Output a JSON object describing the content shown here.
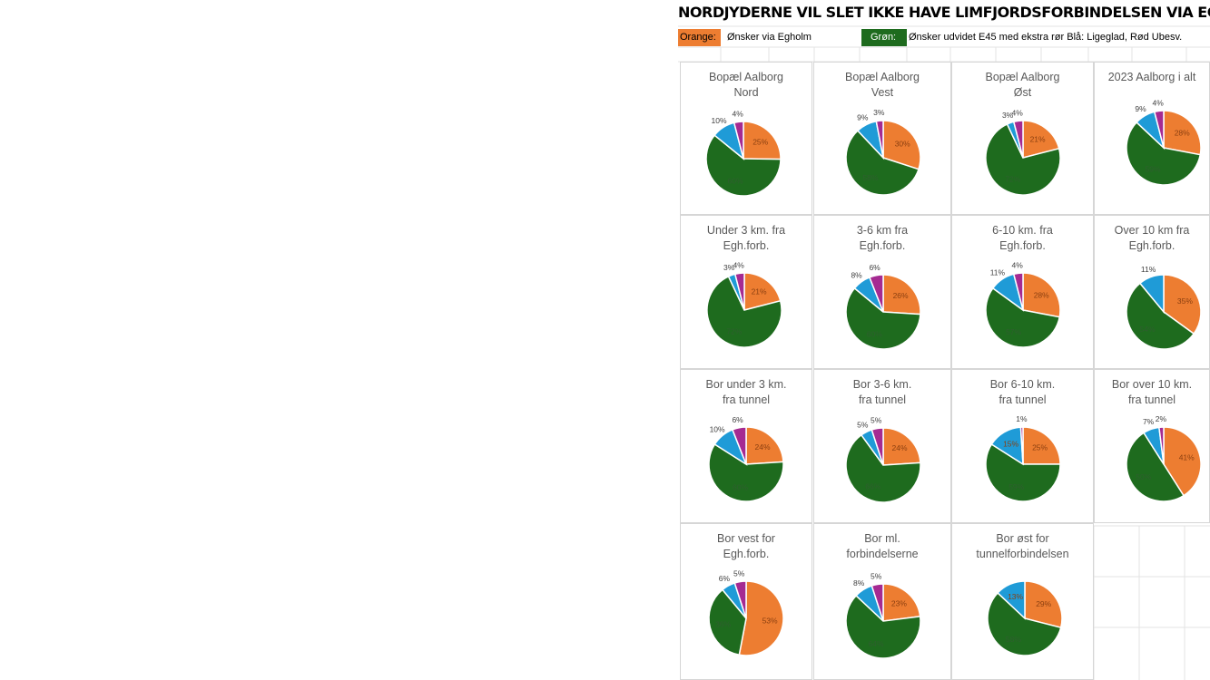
{
  "title": "NORDJYDERNE VIL SLET IKKE HAVE LIMFJORDSFORBINDELSEN VIA EGHOLM",
  "legend": {
    "orange_label": "Orange:",
    "orange_text": "Ønsker via Egholm",
    "green_label": "Grøn:",
    "green_text": "Ønsker udvidet E45 med ekstra rør  Blå: Ligeglad, Rød Ubesv."
  },
  "colors": {
    "orange": "#ed7d31",
    "green": "#1e6b1e",
    "blue": "#1f9bd7",
    "purple": "#a52a92"
  },
  "chart_data": [
    {
      "type": "pie",
      "title": "Bopæl Aalborg\nNord",
      "slices": [
        {
          "category": "orange",
          "value": 25,
          "label": "25%"
        },
        {
          "category": "green",
          "value": 60,
          "label": "60%"
        },
        {
          "category": "blue",
          "value": 10,
          "label": "10%"
        },
        {
          "category": "purple",
          "value": 4,
          "label": "4%"
        }
      ]
    },
    {
      "type": "pie",
      "title": "Bopæl Aalborg\nVest",
      "slices": [
        {
          "category": "orange",
          "value": 30,
          "label": "30%"
        },
        {
          "category": "green",
          "value": 58,
          "label": "58%"
        },
        {
          "category": "blue",
          "value": 9,
          "label": "9%"
        },
        {
          "category": "purple",
          "value": 3,
          "label": "3%"
        }
      ]
    },
    {
      "type": "pie",
      "title": "Bopæl Aalborg\nØst",
      "slices": [
        {
          "category": "orange",
          "value": 21,
          "label": "21%"
        },
        {
          "category": "green",
          "value": 72,
          "label": "72%"
        },
        {
          "category": "blue",
          "value": 3,
          "label": "3%"
        },
        {
          "category": "purple",
          "value": 4,
          "label": "4%"
        }
      ]
    },
    {
      "type": "pie",
      "title": "2023 Aalborg i alt",
      "slices": [
        {
          "category": "orange",
          "value": 28,
          "label": "28%"
        },
        {
          "category": "green",
          "value": 59,
          "label": "59%"
        },
        {
          "category": "blue",
          "value": 9,
          "label": "9%"
        },
        {
          "category": "purple",
          "value": 4,
          "label": "4%"
        }
      ]
    },
    {
      "type": "pie",
      "title": "Under 3 km. fra\nEgh.forb.",
      "slices": [
        {
          "category": "orange",
          "value": 21,
          "label": "21%"
        },
        {
          "category": "green",
          "value": 72,
          "label": "72%"
        },
        {
          "category": "blue",
          "value": 3,
          "label": "3%"
        },
        {
          "category": "purple",
          "value": 4,
          "label": "4%"
        }
      ]
    },
    {
      "type": "pie",
      "title": "3-6 km  fra\nEgh.forb.",
      "slices": [
        {
          "category": "orange",
          "value": 26,
          "label": "26%"
        },
        {
          "category": "green",
          "value": 60,
          "label": "60%"
        },
        {
          "category": "blue",
          "value": 8,
          "label": "8%"
        },
        {
          "category": "purple",
          "value": 6,
          "label": "6%"
        }
      ]
    },
    {
      "type": "pie",
      "title": "6-10 km. fra\nEgh.forb.",
      "slices": [
        {
          "category": "orange",
          "value": 28,
          "label": "28%"
        },
        {
          "category": "green",
          "value": 57,
          "label": "57%"
        },
        {
          "category": "blue",
          "value": 11,
          "label": "11%"
        },
        {
          "category": "purple",
          "value": 4,
          "label": "4%"
        }
      ]
    },
    {
      "type": "pie",
      "title": "Over 10 km  fra\nEgh.forb.",
      "slices": [
        {
          "category": "orange",
          "value": 35,
          "label": "35%"
        },
        {
          "category": "green",
          "value": 54,
          "label": "54%"
        },
        {
          "category": "blue",
          "value": 11,
          "label": "11%"
        }
      ]
    },
    {
      "type": "pie",
      "title": "Bor under 3 km.\nfra tunnel",
      "slices": [
        {
          "category": "orange",
          "value": 24,
          "label": "24%"
        },
        {
          "category": "green",
          "value": 60,
          "label": "60%"
        },
        {
          "category": "blue",
          "value": 10,
          "label": "10%"
        },
        {
          "category": "purple",
          "value": 6,
          "label": "6%"
        }
      ]
    },
    {
      "type": "pie",
      "title": "Bor 3-6 km.\nfra tunnel",
      "slices": [
        {
          "category": "orange",
          "value": 24,
          "label": "24%"
        },
        {
          "category": "green",
          "value": 66,
          "label": "66%"
        },
        {
          "category": "blue",
          "value": 5,
          "label": "5%"
        },
        {
          "category": "purple",
          "value": 5,
          "label": "5%"
        }
      ]
    },
    {
      "type": "pie",
      "title": "Bor 6-10 km.\nfra tunnel",
      "slices": [
        {
          "category": "orange",
          "value": 25,
          "label": "25%"
        },
        {
          "category": "green",
          "value": 59,
          "label": "59%"
        },
        {
          "category": "blue",
          "value": 15,
          "label": "15%"
        },
        {
          "category": "purple",
          "value": 1,
          "label": "1%"
        }
      ]
    },
    {
      "type": "pie",
      "title": "Bor over 10 km.\nfra tunnel",
      "slices": [
        {
          "category": "orange",
          "value": 41,
          "label": "41%"
        },
        {
          "category": "green",
          "value": 50,
          "label": "50%"
        },
        {
          "category": "blue",
          "value": 7,
          "label": "7%"
        },
        {
          "category": "purple",
          "value": 2,
          "label": "2%"
        }
      ]
    },
    {
      "type": "pie",
      "title": "Bor vest for\nEgh.forb.",
      "slices": [
        {
          "category": "orange",
          "value": 53,
          "label": "53%"
        },
        {
          "category": "green",
          "value": 36,
          "label": "36%"
        },
        {
          "category": "blue",
          "value": 6,
          "label": "6%"
        },
        {
          "category": "purple",
          "value": 5,
          "label": "5%"
        }
      ]
    },
    {
      "type": "pie",
      "title": "Bor ml.\nforbindelserne",
      "slices": [
        {
          "category": "orange",
          "value": 23,
          "label": "23%"
        },
        {
          "category": "green",
          "value": 64,
          "label": "64%"
        },
        {
          "category": "blue",
          "value": 8,
          "label": "8%"
        },
        {
          "category": "purple",
          "value": 5,
          "label": "5%"
        }
      ]
    },
    {
      "type": "pie",
      "title": "Bor øst for\ntunnelforbindelsen",
      "slices": [
        {
          "category": "orange",
          "value": 29,
          "label": "29%"
        },
        {
          "category": "green",
          "value": 58,
          "label": "58%"
        },
        {
          "category": "blue",
          "value": 13,
          "label": "13%"
        }
      ]
    }
  ]
}
